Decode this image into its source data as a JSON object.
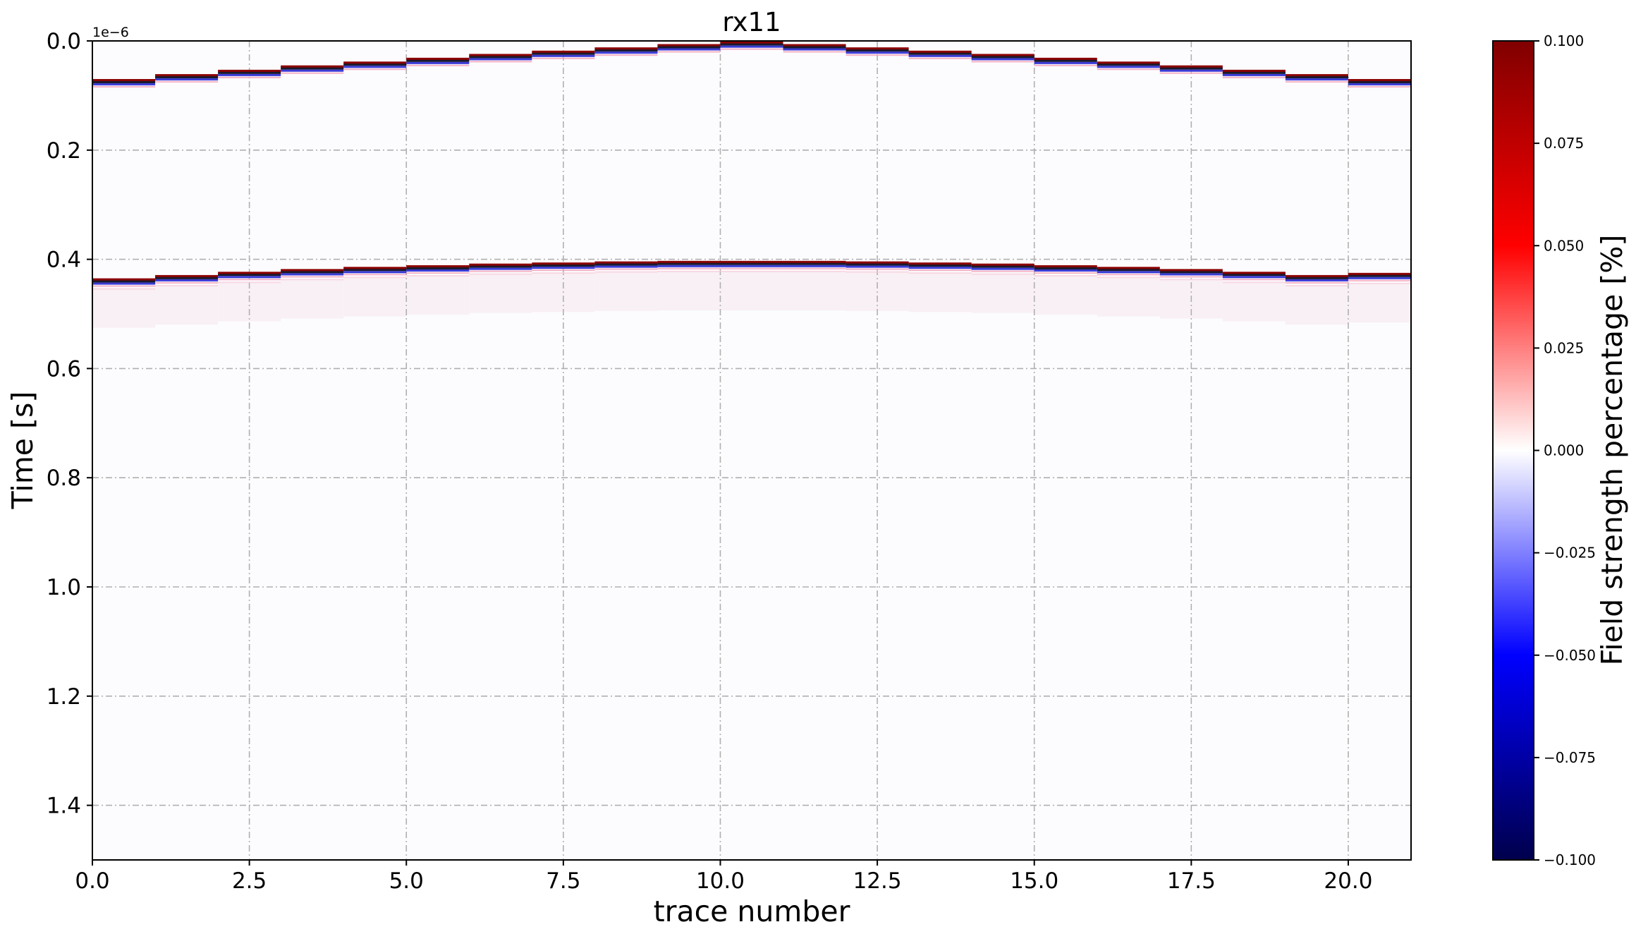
{
  "chart_data": {
    "type": "heatmap",
    "title": "rx11",
    "xlabel": "trace number",
    "ylabel": "Time [s]",
    "y_offset_label": "1e−6",
    "xlim": [
      0,
      21
    ],
    "ylim": [
      1.5e-06,
      0
    ],
    "x_ticks": [
      0.0,
      2.5,
      5.0,
      7.5,
      10.0,
      12.5,
      15.0,
      17.5,
      20.0
    ],
    "x_tick_labels": [
      "0.0",
      "2.5",
      "5.0",
      "7.5",
      "10.0",
      "12.5",
      "15.0",
      "17.5",
      "20.0"
    ],
    "y_ticks": [
      0.0,
      0.2,
      0.4,
      0.6,
      0.8,
      1.0,
      1.2,
      1.4
    ],
    "y_tick_labels": [
      "0.0",
      "0.2",
      "0.4",
      "0.6",
      "0.8",
      "1.0",
      "1.2",
      "1.4"
    ],
    "grid": true,
    "colormap": "seismic",
    "colorbar": {
      "label": "Field strength percentage [%]",
      "vmin": -0.1,
      "vmax": 0.1,
      "ticks": [
        0.1,
        0.075,
        0.05,
        0.025,
        0.0,
        -0.025,
        -0.05,
        -0.075,
        -0.1
      ],
      "tick_labels": [
        "0.100",
        "0.075",
        "0.050",
        "0.025",
        "0.000",
        "−0.025",
        "−0.050",
        "−0.075",
        "−0.100"
      ],
      "colors": [
        "#00004c",
        "#0000ff",
        "#ffffff",
        "#ff0000",
        "#800000"
      ]
    },
    "traces": [
      0,
      1,
      2,
      3,
      4,
      5,
      6,
      7,
      8,
      9,
      10,
      11,
      12,
      13,
      14,
      15,
      16,
      17,
      18,
      19,
      20
    ],
    "direct_wave_time_e6": [
      0.075,
      0.066,
      0.058,
      0.05,
      0.043,
      0.036,
      0.029,
      0.023,
      0.017,
      0.011,
      0.006,
      0.011,
      0.017,
      0.023,
      0.029,
      0.036,
      0.043,
      0.05,
      0.058,
      0.066,
      0.075
    ],
    "reflection_time_e6": [
      0.44,
      0.434,
      0.428,
      0.423,
      0.419,
      0.416,
      0.413,
      0.411,
      0.409,
      0.408,
      0.408,
      0.408,
      0.409,
      0.411,
      0.413,
      0.416,
      0.419,
      0.423,
      0.428,
      0.434,
      0.43
    ]
  }
}
